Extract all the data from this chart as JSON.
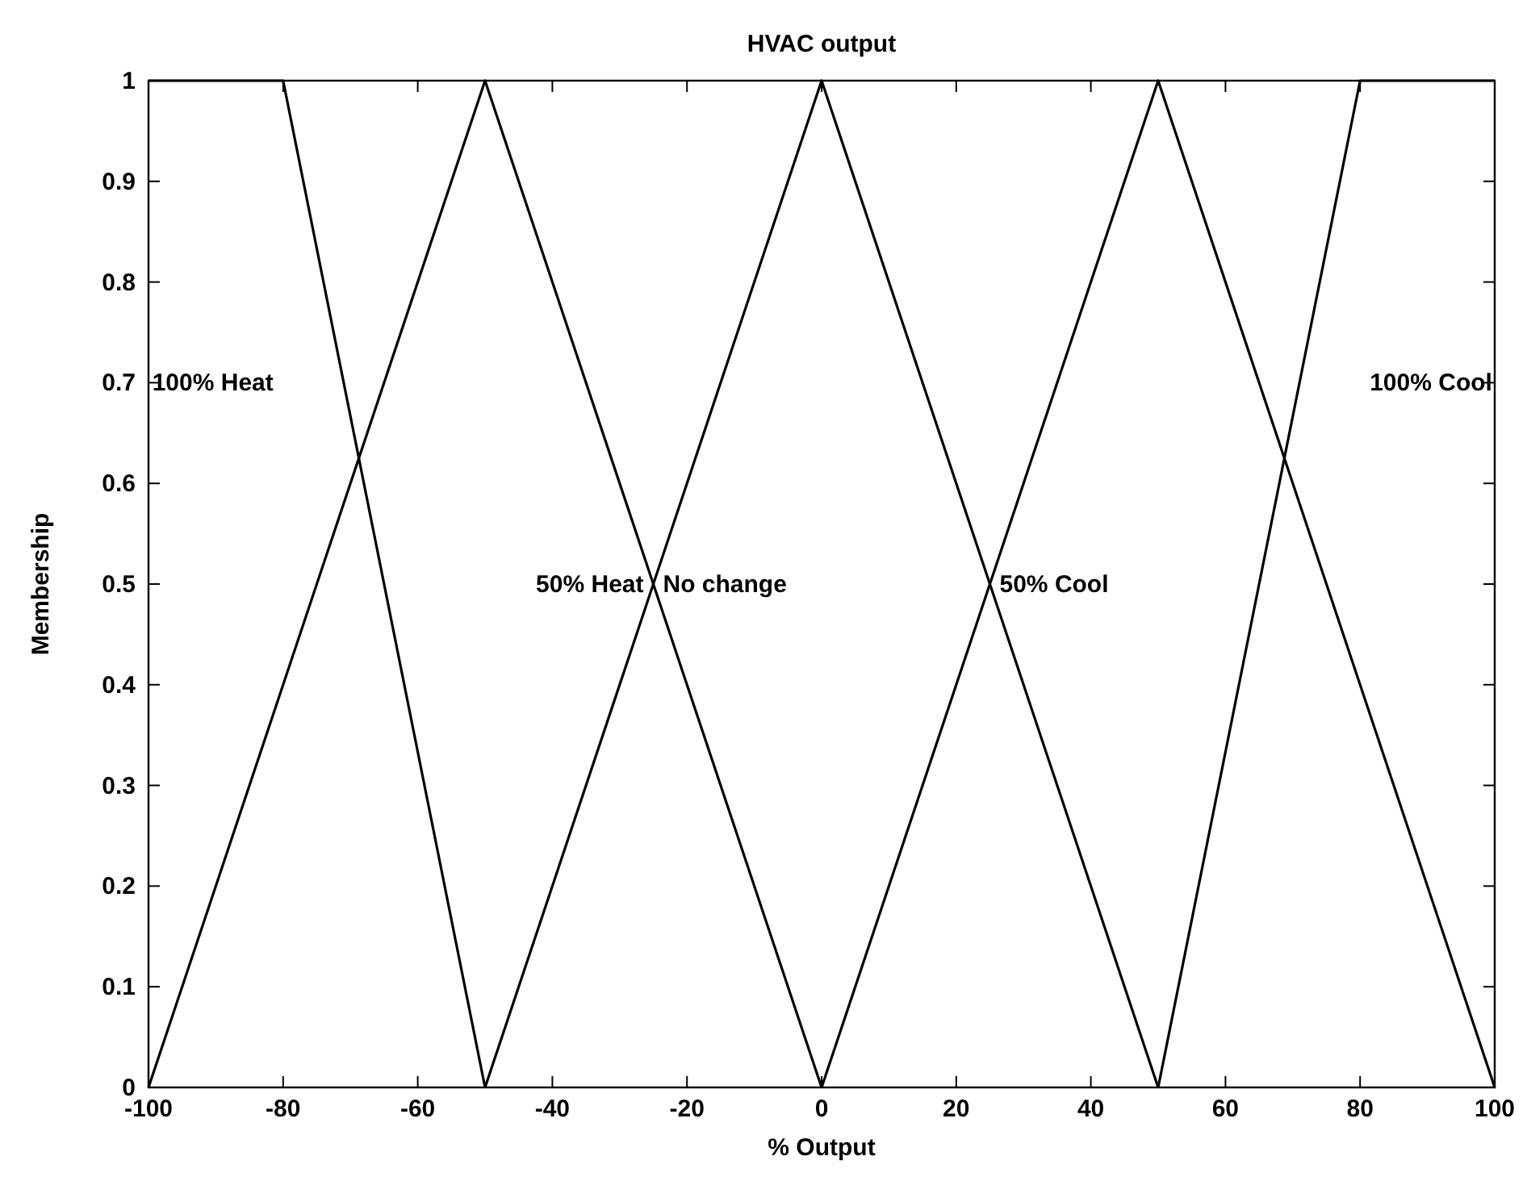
{
  "chart_data": {
    "type": "line",
    "title": "HVAC output",
    "xlabel": "% Output",
    "ylabel": "Membership",
    "xlim": [
      -100,
      100
    ],
    "ylim": [
      0,
      1
    ],
    "xticks": [
      -100,
      -80,
      -60,
      -40,
      -20,
      0,
      20,
      40,
      60,
      80,
      100
    ],
    "yticks": [
      0,
      0.1,
      0.2,
      0.3,
      0.4,
      0.5,
      0.6,
      0.7,
      0.8,
      0.9,
      1
    ],
    "grid": false,
    "marker": "none",
    "line_style": "solid",
    "series": [
      {
        "name": "100% Heat",
        "color": "#000000",
        "x": [
          -100,
          -80,
          -50
        ],
        "values": [
          1,
          1,
          0
        ]
      },
      {
        "name": "50% Heat",
        "color": "#000000",
        "x": [
          -100,
          -50,
          0
        ],
        "values": [
          0,
          1,
          0
        ]
      },
      {
        "name": "No change",
        "color": "#000000",
        "x": [
          -50,
          0,
          50
        ],
        "values": [
          0,
          1,
          0
        ]
      },
      {
        "name": "50% Cool",
        "color": "#000000",
        "x": [
          0,
          50,
          100
        ],
        "values": [
          0,
          1,
          0
        ]
      },
      {
        "name": "100% Cool",
        "color": "#000000",
        "x": [
          50,
          80,
          100
        ],
        "values": [
          0,
          1,
          1
        ]
      }
    ]
  }
}
